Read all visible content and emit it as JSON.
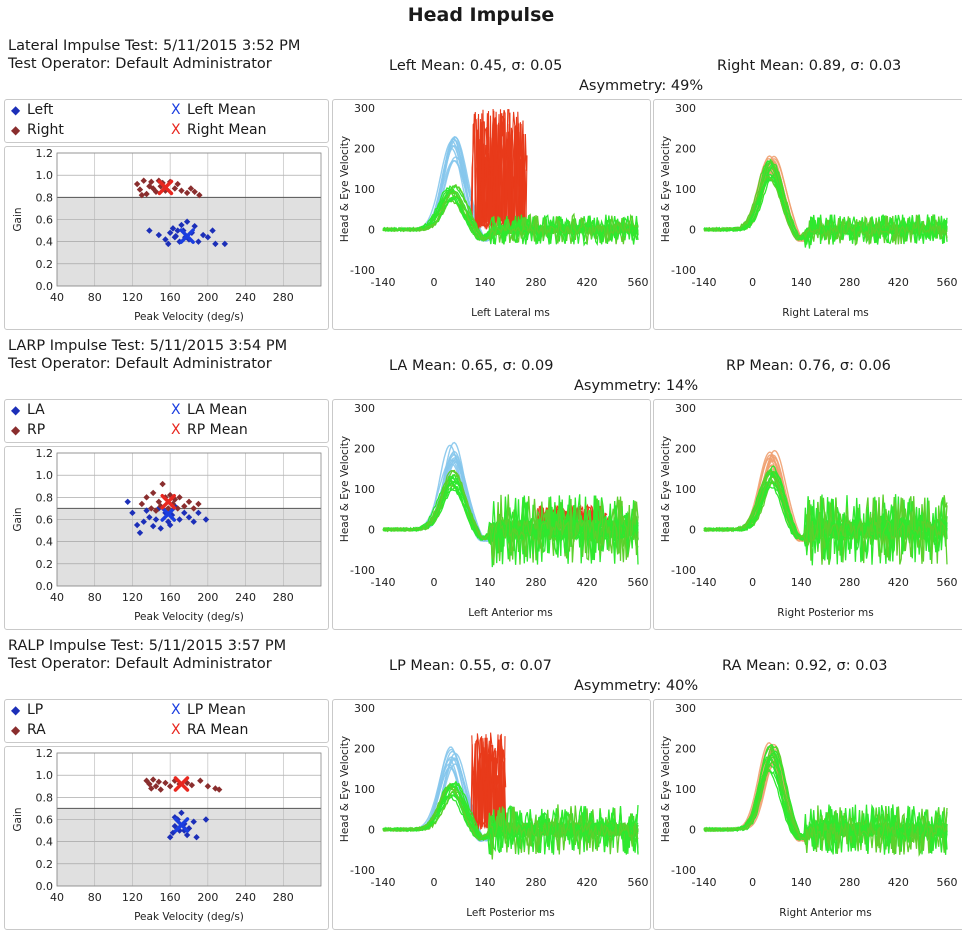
{
  "page": {
    "title": "Head Impulse"
  },
  "sections": [
    {
      "test_line": "Lateral Impulse Test: 5/11/2015 3:52 PM",
      "operator_line": "Test Operator: Default Administrator",
      "left_mean_text": "Left Mean: 0.45, σ: 0.05",
      "right_mean_text": "Right Mean: 0.89, σ: 0.03",
      "asymmetry_text": "Asymmetry: 49%",
      "legend": {
        "series_a": "Left",
        "series_b": "Right",
        "mean_a": "Left Mean",
        "mean_b": "Right Mean"
      },
      "left_xlabel": "Left Lateral ms",
      "right_xlabel": "Right Lateral ms"
    },
    {
      "test_line": "LARP Impulse Test: 5/11/2015 3:54 PM",
      "operator_line": "Test Operator: Default Administrator",
      "left_mean_text": "LA Mean: 0.65, σ: 0.09",
      "right_mean_text": "RP Mean: 0.76, σ: 0.06",
      "asymmetry_text": "Asymmetry: 14%",
      "legend": {
        "series_a": "LA",
        "series_b": "RP",
        "mean_a": "LA Mean",
        "mean_b": "RP Mean"
      },
      "left_xlabel": "Left Anterior ms",
      "right_xlabel": "Right Posterior ms"
    },
    {
      "test_line": "RALP Impulse Test: 5/11/2015 3:57 PM",
      "operator_line": "Test Operator: Default Administrator",
      "left_mean_text": "LP Mean: 0.55, σ: 0.07",
      "right_mean_text": "RA Mean: 0.92, σ: 0.03",
      "asymmetry_text": "Asymmetry: 40%",
      "legend": {
        "series_a": "LP",
        "series_b": "RA",
        "mean_a": "LP Mean",
        "mean_b": "RA Mean"
      },
      "left_xlabel": "Left Posterior ms",
      "right_xlabel": "Right Anterior ms"
    }
  ],
  "colors": {
    "series_a": "#1c2fb8",
    "series_b": "#8a2e2e",
    "mean_a": "#1a3ee0",
    "mean_b": "#e8271f",
    "head_left": "#86c7ec",
    "head_right": "#f0a070",
    "eye": "#2ee82e",
    "eye_dark": "#5cd02c",
    "saccade": "#e83a1a",
    "shade": "#e0e0e0"
  },
  "chart_data": [
    {
      "type": "scatter",
      "xlabel": "Peak Velocity (deg/s)",
      "ylabel": "Gain",
      "xlim": [
        40,
        320
      ],
      "ylim": [
        0,
        1.2
      ],
      "xticks": [
        40,
        80,
        120,
        160,
        200,
        240,
        280
      ],
      "yticks": [
        0.0,
        0.2,
        0.4,
        0.6,
        0.8,
        1.0,
        1.2
      ],
      "threshold": 0.8,
      "series": [
        {
          "name": "Left",
          "points": [
            [
              138,
              0.5
            ],
            [
              148,
              0.46
            ],
            [
              155,
              0.42
            ],
            [
              160,
              0.48
            ],
            [
              163,
              0.52
            ],
            [
              166,
              0.45
            ],
            [
              168,
              0.5
            ],
            [
              170,
              0.4
            ],
            [
              172,
              0.55
            ],
            [
              174,
              0.5
            ],
            [
              176,
              0.44
            ],
            [
              178,
              0.58
            ],
            [
              180,
              0.42
            ],
            [
              183,
              0.48
            ],
            [
              186,
              0.54
            ],
            [
              190,
              0.4
            ],
            [
              195,
              0.46
            ],
            [
              200,
              0.44
            ],
            [
              205,
              0.5
            ],
            [
              208,
              0.38
            ],
            [
              218,
              0.38
            ],
            [
              158,
              0.38
            ],
            [
              165,
              0.44
            ]
          ]
        },
        {
          "name": "Right",
          "points": [
            [
              125,
              0.92
            ],
            [
              128,
              0.87
            ],
            [
              132,
              0.95
            ],
            [
              135,
              0.83
            ],
            [
              138,
              0.9
            ],
            [
              140,
              0.94
            ],
            [
              142,
              0.88
            ],
            [
              145,
              0.85
            ],
            [
              148,
              0.95
            ],
            [
              150,
              0.9
            ],
            [
              155,
              0.86
            ],
            [
              160,
              0.94
            ],
            [
              165,
              0.88
            ],
            [
              168,
              0.92
            ],
            [
              172,
              0.86
            ],
            [
              178,
              0.84
            ],
            [
              182,
              0.88
            ],
            [
              186,
              0.85
            ],
            [
              191,
              0.82
            ],
            [
              130,
              0.82
            ],
            [
              152,
              0.93
            ]
          ]
        },
        {
          "name": "Left Mean",
          "points": [
            [
              178,
              0.45
            ]
          ]
        },
        {
          "name": "Right Mean",
          "points": [
            [
              155,
              0.89
            ]
          ]
        }
      ]
    },
    {
      "type": "scatter",
      "xlabel": "Peak Velocity (deg/s)",
      "ylabel": "Gain",
      "xlim": [
        40,
        320
      ],
      "ylim": [
        0,
        1.2
      ],
      "xticks": [
        40,
        80,
        120,
        160,
        200,
        240,
        280
      ],
      "yticks": [
        0.0,
        0.2,
        0.4,
        0.6,
        0.8,
        1.0,
        1.2
      ],
      "threshold": 0.7,
      "series": [
        {
          "name": "LA",
          "points": [
            [
              115,
              0.76
            ],
            [
              120,
              0.66
            ],
            [
              125,
              0.55
            ],
            [
              128,
              0.48
            ],
            [
              132,
              0.58
            ],
            [
              138,
              0.62
            ],
            [
              142,
              0.54
            ],
            [
              148,
              0.7
            ],
            [
              150,
              0.52
            ],
            [
              155,
              0.66
            ],
            [
              158,
              0.58
            ],
            [
              160,
              0.55
            ],
            [
              162,
              0.64
            ],
            [
              165,
              0.72
            ],
            [
              170,
              0.6
            ],
            [
              175,
              0.66
            ],
            [
              180,
              0.62
            ],
            [
              185,
              0.58
            ],
            [
              190,
              0.66
            ],
            [
              198,
              0.6
            ],
            [
              135,
              0.68
            ],
            [
              145,
              0.6
            ]
          ]
        },
        {
          "name": "RP",
          "points": [
            [
              130,
              0.74
            ],
            [
              135,
              0.8
            ],
            [
              140,
              0.7
            ],
            [
              142,
              0.84
            ],
            [
              148,
              0.76
            ],
            [
              150,
              0.72
            ],
            [
              152,
              0.92
            ],
            [
              155,
              0.8
            ],
            [
              158,
              0.7
            ],
            [
              160,
              0.82
            ],
            [
              163,
              0.74
            ],
            [
              165,
              0.78
            ],
            [
              170,
              0.8
            ],
            [
              175,
              0.72
            ],
            [
              180,
              0.76
            ],
            [
              185,
              0.7
            ],
            [
              190,
              0.74
            ],
            [
              145,
              0.68
            ],
            [
              168,
              0.7
            ]
          ]
        },
        {
          "name": "LA Mean",
          "points": [
            [
              158,
              0.65
            ]
          ]
        },
        {
          "name": "RP Mean",
          "points": [
            [
              158,
              0.76
            ]
          ]
        }
      ]
    },
    {
      "type": "scatter",
      "xlabel": "Peak Velocity (deg/s)",
      "ylabel": "Gain",
      "xlim": [
        40,
        320
      ],
      "ylim": [
        0,
        1.2
      ],
      "xticks": [
        40,
        80,
        120,
        160,
        200,
        240,
        280
      ],
      "yticks": [
        0.0,
        0.2,
        0.4,
        0.6,
        0.8,
        1.0,
        1.2
      ],
      "threshold": 0.7,
      "series": [
        {
          "name": "LP",
          "points": [
            [
              160,
              0.44
            ],
            [
              163,
              0.48
            ],
            [
              165,
              0.54
            ],
            [
              168,
              0.6
            ],
            [
              170,
              0.5
            ],
            [
              172,
              0.66
            ],
            [
              175,
              0.56
            ],
            [
              178,
              0.46
            ],
            [
              180,
              0.52
            ],
            [
              185,
              0.58
            ],
            [
              188,
              0.44
            ],
            [
              165,
              0.62
            ],
            [
              175,
              0.5
            ],
            [
              198,
              0.6
            ]
          ]
        },
        {
          "name": "RA",
          "points": [
            [
              135,
              0.95
            ],
            [
              138,
              0.92
            ],
            [
              140,
              0.88
            ],
            [
              142,
              0.96
            ],
            [
              145,
              0.9
            ],
            [
              148,
              0.94
            ],
            [
              150,
              0.87
            ],
            [
              155,
              0.93
            ],
            [
              160,
              0.9
            ],
            [
              165,
              0.95
            ],
            [
              170,
              0.92
            ],
            [
              178,
              0.93
            ],
            [
              183,
              0.91
            ],
            [
              192,
              0.95
            ],
            [
              200,
              0.9
            ],
            [
              208,
              0.88
            ],
            [
              212,
              0.87
            ]
          ]
        },
        {
          "name": "LP Mean",
          "points": [
            [
              172,
              0.55
            ]
          ]
        },
        {
          "name": "RA Mean",
          "points": [
            [
              172,
              0.92
            ]
          ]
        }
      ]
    }
  ],
  "wave_axes": {
    "ylabel": "Head & Eye Velocity",
    "xlim": [
      -140,
      560
    ],
    "ylim": [
      -100,
      300
    ],
    "xticks": [
      -140,
      0,
      140,
      280,
      420,
      560
    ],
    "yticks": [
      -100,
      0,
      100,
      200,
      300
    ],
    "traces": [
      {
        "head_peak": 200,
        "head_t": 50,
        "eye_gain": 0.45,
        "saccade_start": 100,
        "saccade_end": 260,
        "saccade_max": 300,
        "eye_noise": 30,
        "right_gain": 0.89,
        "right_peak": 160,
        "right_t": 55,
        "right_noise": 30
      },
      {
        "head_peak": 190,
        "head_t": 50,
        "eye_gain": 0.65,
        "saccade_start": 280,
        "saccade_end": 480,
        "saccade_max": 60,
        "eye_noise": 70,
        "right_gain": 0.76,
        "right_peak": 170,
        "right_t": 55,
        "right_noise": 70
      },
      {
        "head_peak": 180,
        "head_t": 50,
        "eye_gain": 0.55,
        "saccade_start": 100,
        "saccade_end": 200,
        "saccade_max": 240,
        "eye_noise": 50,
        "right_gain": 0.92,
        "right_peak": 190,
        "right_t": 55,
        "right_noise": 50
      }
    ]
  }
}
